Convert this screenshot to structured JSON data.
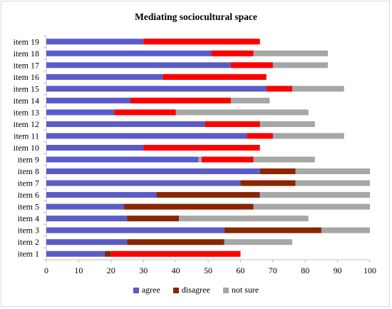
{
  "chart_data": {
    "type": "bar",
    "orientation": "horizontal",
    "stacked": true,
    "title": "Mediating sociocultural space",
    "xlabel": "",
    "ylabel": "",
    "xlim": [
      0,
      100
    ],
    "xticks": [
      0,
      10,
      20,
      30,
      40,
      50,
      60,
      70,
      80,
      90,
      100
    ],
    "grid": false,
    "legend_position": "bottom",
    "categories": [
      "item 19",
      "item 18",
      "item 17",
      "item 16",
      "item 15",
      "item 14",
      "item 13",
      "item 12",
      "item 11",
      "item 10",
      "item 9",
      "item 8",
      "item 7",
      "item 6",
      "item 5",
      "item 4",
      "item 3",
      "item 2",
      "item 1"
    ],
    "series": [
      {
        "name": "agree",
        "color": "#5b5bc8",
        "values": [
          30,
          51,
          57,
          36,
          68,
          26,
          21,
          49,
          62,
          30,
          47,
          66,
          60,
          34,
          24,
          25,
          55,
          25,
          18
        ]
      },
      {
        "name": "disagree",
        "color": "#8b2500",
        "values": [
          0,
          0,
          0,
          0,
          0,
          0,
          0,
          0,
          0,
          0,
          0,
          11,
          17,
          32,
          40,
          16,
          30,
          30,
          2
        ]
      },
      {
        "name": "not sure",
        "color": "#a6a6a6",
        "values": [
          34,
          36,
          30,
          32,
          24,
          43,
          60,
          34,
          30,
          34,
          36,
          23,
          23,
          34,
          36,
          40,
          15,
          21,
          40
        ]
      }
    ],
    "highlight_overlay": {
      "color": "#ff0000",
      "segments": [
        [
          30,
          66
        ],
        [
          51,
          64
        ],
        [
          57,
          70
        ],
        [
          36,
          68
        ],
        [
          68,
          76
        ],
        [
          26,
          57
        ],
        [
          21,
          40
        ],
        [
          49,
          66
        ],
        [
          62,
          70
        ],
        [
          30,
          66
        ],
        [
          48,
          64
        ],
        [
          0,
          0
        ],
        [
          0,
          0
        ],
        [
          0,
          0
        ],
        [
          0,
          0
        ],
        [
          0,
          0
        ],
        [
          0,
          0
        ],
        [
          0,
          0
        ],
        [
          20,
          60
        ]
      ]
    }
  },
  "legend": {
    "agree": "agree",
    "disagree": "disagree",
    "not_sure": "not sure"
  }
}
